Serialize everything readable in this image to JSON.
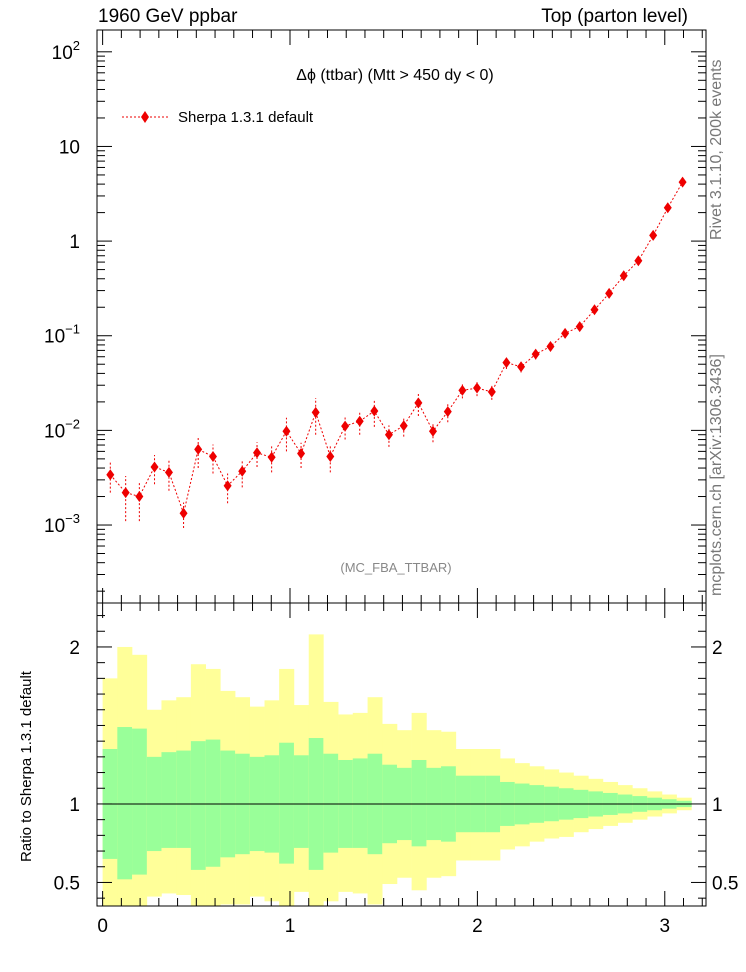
{
  "header": {
    "left": "1960 GeV ppbar",
    "right": "Top (parton level)"
  },
  "side_labels": {
    "top": "Rivet 3.1.10,  200k events",
    "bottom": "mcplots.cern.ch [arXiv:1306.3436]"
  },
  "colors": {
    "marker": "#ee0000",
    "band_inner": "#99ff99",
    "band_outer": "#ffff99",
    "watermark": "#888888"
  },
  "chart_data": [
    {
      "type": "scatter",
      "title": "Δϕ (ttbar) (Mtt > 450 dy < 0)",
      "watermark": "(MC_FBA_TTBAR)",
      "yscale": "log",
      "xlim": [
        -0.03,
        3.22
      ],
      "ylim": [
        0.00015,
        170
      ],
      "yticks": [
        {
          "value": 0.001,
          "base": "10",
          "exp": "−3"
        },
        {
          "value": 0.01,
          "base": "10",
          "exp": "−2"
        },
        {
          "value": 0.1,
          "base": "10",
          "exp": "−1"
        },
        {
          "value": 1,
          "base": "1",
          "exp": ""
        },
        {
          "value": 10,
          "base": "10",
          "exp": ""
        },
        {
          "value": 100,
          "base": "10",
          "exp": "2"
        }
      ],
      "legend": {
        "position": "top-left",
        "entries": [
          "Sherpa 1.3.1 default"
        ]
      },
      "series": [
        {
          "name": "Sherpa 1.3.1 default",
          "color": "#ee0000",
          "x": [
            0.041,
            0.123,
            0.196,
            0.277,
            0.354,
            0.432,
            0.51,
            0.589,
            0.667,
            0.745,
            0.824,
            0.902,
            0.981,
            1.059,
            1.137,
            1.215,
            1.294,
            1.372,
            1.45,
            1.528,
            1.607,
            1.685,
            1.763,
            1.842,
            1.92,
            1.998,
            2.077,
            2.155,
            2.233,
            2.311,
            2.39,
            2.468,
            2.546,
            2.625,
            2.703,
            2.781,
            2.859,
            2.938,
            3.016,
            3.095
          ],
          "y": [
            0.0034,
            0.0022,
            0.002,
            0.0041,
            0.0036,
            0.00133,
            0.0063,
            0.0053,
            0.0026,
            0.0037,
            0.0058,
            0.0052,
            0.0098,
            0.0057,
            0.0155,
            0.0053,
            0.0111,
            0.0125,
            0.016,
            0.009,
            0.0112,
            0.0195,
            0.0098,
            0.0158,
            0.0265,
            0.028,
            0.0255,
            0.052,
            0.047,
            0.064,
            0.077,
            0.106,
            0.125,
            0.188,
            0.28,
            0.43,
            0.62,
            1.15,
            2.25,
            4.2
          ],
          "yerr": [
            0.0012,
            0.0011,
            0.0009,
            0.0014,
            0.0013,
            0.0004,
            0.0023,
            0.0018,
            0.0009,
            0.0012,
            0.0017,
            0.0016,
            0.0038,
            0.0017,
            0.0065,
            0.0017,
            0.0031,
            0.0035,
            0.0051,
            0.0023,
            0.0026,
            0.0053,
            0.0023,
            0.0036,
            0.0047,
            0.005,
            0.0045,
            0.0075,
            0.0061,
            0.0079,
            0.0084,
            0.011,
            0.0118,
            0.016,
            0.0209,
            0.029,
            0.037,
            0.06,
            0.09,
            0.15
          ]
        }
      ]
    },
    {
      "type": "area",
      "ylabel": "Ratio to Sherpa 1.3.1 default",
      "xlim": [
        -0.03,
        3.22
      ],
      "ylim": [
        0.35,
        2.28
      ],
      "xticks": [
        0,
        1,
        2,
        3
      ],
      "yticks": [
        0.5,
        1,
        2
      ],
      "reference": 1.0,
      "bands": {
        "bin_edges": [
          0.0,
          0.0785,
          0.157,
          0.236,
          0.314,
          0.393,
          0.471,
          0.55,
          0.628,
          0.707,
          0.785,
          0.864,
          0.942,
          1.021,
          1.1,
          1.178,
          1.257,
          1.335,
          1.414,
          1.492,
          1.571,
          1.649,
          1.728,
          1.806,
          1.885,
          1.963,
          2.042,
          2.121,
          2.199,
          2.278,
          2.356,
          2.435,
          2.513,
          2.592,
          2.67,
          2.749,
          2.827,
          2.906,
          2.985,
          3.063,
          3.142
        ],
        "inner_low": [
          0.65,
          0.52,
          0.55,
          0.7,
          0.72,
          0.72,
          0.58,
          0.6,
          0.66,
          0.68,
          0.7,
          0.69,
          0.62,
          0.72,
          0.58,
          0.69,
          0.72,
          0.72,
          0.68,
          0.75,
          0.77,
          0.73,
          0.77,
          0.76,
          0.82,
          0.82,
          0.82,
          0.86,
          0.87,
          0.88,
          0.89,
          0.9,
          0.91,
          0.92,
          0.93,
          0.94,
          0.95,
          0.96,
          0.97,
          0.98
        ],
        "inner_high": [
          1.35,
          1.49,
          1.48,
          1.3,
          1.33,
          1.34,
          1.4,
          1.41,
          1.34,
          1.32,
          1.3,
          1.31,
          1.39,
          1.31,
          1.42,
          1.32,
          1.28,
          1.29,
          1.32,
          1.25,
          1.23,
          1.28,
          1.23,
          1.24,
          1.18,
          1.18,
          1.18,
          1.14,
          1.13,
          1.12,
          1.11,
          1.1,
          1.09,
          1.08,
          1.07,
          1.06,
          1.05,
          1.04,
          1.03,
          1.02
        ],
        "outer_low": [
          0.3,
          0.3,
          0.3,
          0.41,
          0.43,
          0.42,
          0.3,
          0.31,
          0.36,
          0.36,
          0.41,
          0.38,
          0.3,
          0.44,
          0.3,
          0.38,
          0.44,
          0.43,
          0.36,
          0.49,
          0.53,
          0.45,
          0.53,
          0.54,
          0.64,
          0.64,
          0.64,
          0.71,
          0.73,
          0.76,
          0.78,
          0.79,
          0.82,
          0.84,
          0.86,
          0.88,
          0.9,
          0.92,
          0.94,
          0.96
        ],
        "outer_high": [
          1.8,
          2.0,
          1.95,
          1.6,
          1.66,
          1.68,
          1.89,
          1.86,
          1.72,
          1.68,
          1.62,
          1.66,
          1.86,
          1.63,
          2.08,
          1.65,
          1.57,
          1.58,
          1.68,
          1.51,
          1.47,
          1.58,
          1.47,
          1.46,
          1.35,
          1.35,
          1.35,
          1.29,
          1.26,
          1.24,
          1.22,
          1.2,
          1.18,
          1.16,
          1.14,
          1.12,
          1.1,
          1.08,
          1.06,
          1.04
        ]
      }
    }
  ]
}
